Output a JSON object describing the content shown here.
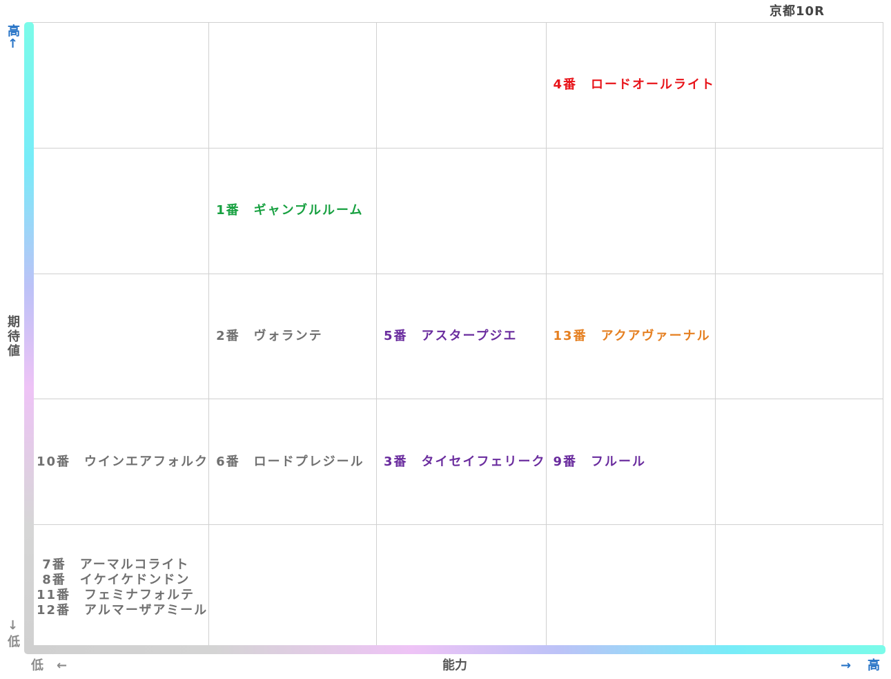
{
  "race_title": "京都10R",
  "axes": {
    "y": {
      "label": "期待値",
      "high": "高",
      "low": "低",
      "high_arrow": "↑",
      "low_arrow": "↓"
    },
    "x": {
      "label": "能力",
      "high": "高",
      "low": "低",
      "high_arrow": "→",
      "low_arrow": "←"
    }
  },
  "grid": {
    "rows": [
      [
        {
          "entries": []
        },
        {
          "entries": []
        },
        {
          "entries": []
        },
        {
          "entries": [
            {
              "text": "4番　ロードオールライト",
              "color": "#e8141a"
            }
          ]
        },
        {
          "entries": []
        }
      ],
      [
        {
          "entries": []
        },
        {
          "entries": [
            {
              "text": "1番　ギャンブルルーム",
              "color": "#17a040"
            }
          ]
        },
        {
          "entries": []
        },
        {
          "entries": []
        },
        {
          "entries": []
        }
      ],
      [
        {
          "entries": []
        },
        {
          "entries": [
            {
              "text": "2番　ヴォランテ",
              "color": "#707070"
            }
          ]
        },
        {
          "entries": [
            {
              "text": "5番　アスタープジエ",
              "color": "#6a2c9e"
            }
          ]
        },
        {
          "entries": [
            {
              "text": "13番　アクアヴァーナル",
              "color": "#e57f20"
            }
          ]
        },
        {
          "entries": []
        }
      ],
      [
        {
          "entries": [
            {
              "text": "10番　ウインエアフォルク",
              "color": "#707070"
            }
          ]
        },
        {
          "entries": [
            {
              "text": "6番　ロードプレジール",
              "color": "#707070"
            }
          ]
        },
        {
          "entries": [
            {
              "text": "3番　タイセイフェリーク",
              "color": "#6a2c9e"
            }
          ]
        },
        {
          "entries": [
            {
              "text": "9番　フルール",
              "color": "#6a2c9e"
            }
          ]
        },
        {
          "entries": []
        }
      ],
      [
        {
          "entries": [
            {
              "text": " 7番　アーマルコライト",
              "color": "#707070"
            },
            {
              "text": " 8番　イケイケドンドン",
              "color": "#707070"
            },
            {
              "text": "11番　フェミナフォルテ",
              "color": "#707070"
            },
            {
              "text": "12番　アルマーザアミール",
              "color": "#707070"
            }
          ]
        },
        {
          "entries": []
        },
        {
          "entries": []
        },
        {
          "entries": []
        },
        {
          "entries": []
        }
      ]
    ]
  }
}
